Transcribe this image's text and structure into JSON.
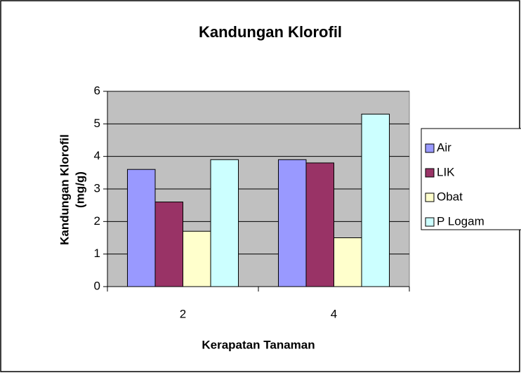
{
  "chart_data": {
    "type": "bar",
    "title": "Kandungan Klorofil",
    "x_label": "Kerapatan Tanaman",
    "y_label_lines": [
      "Kandungan Klorofil",
      "(mg/g)"
    ],
    "categories": [
      "2",
      "4"
    ],
    "series": [
      {
        "name": "Air",
        "color": "#9999ff",
        "values": [
          3.6,
          3.9
        ]
      },
      {
        "name": "LIK",
        "color": "#993366",
        "values": [
          2.6,
          3.8
        ]
      },
      {
        "name": "Obat",
        "color": "#ffffcc",
        "values": [
          1.7,
          1.5
        ]
      },
      {
        "name": "P Logam",
        "color": "#ccffff",
        "values": [
          3.9,
          5.3
        ]
      }
    ],
    "ylim": [
      0,
      6
    ],
    "yticks": [
      0,
      1,
      2,
      3,
      4,
      5,
      6
    ],
    "grid": true,
    "plot_background": "#c0c0c0",
    "legend": "right"
  }
}
